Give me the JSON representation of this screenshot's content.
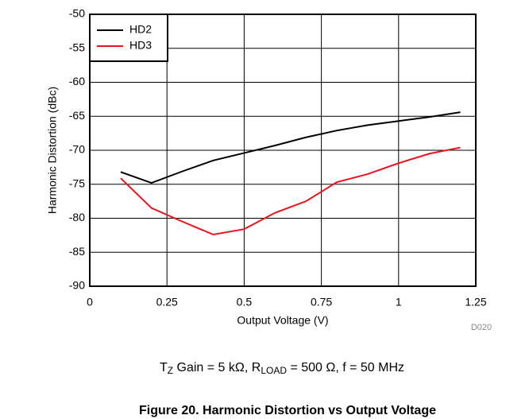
{
  "chart_data": {
    "type": "line",
    "x_label": "Output Voltage (V)",
    "y_label": "Harmonic Distortion (dBc)",
    "x": [
      0.1,
      0.2,
      0.3,
      0.4,
      0.5,
      0.6,
      0.7,
      0.8,
      0.9,
      1.0,
      1.1,
      1.2
    ],
    "series": [
      {
        "name": "HD2",
        "color": "#000000",
        "values": [
          -73.2,
          -74.8,
          -73.1,
          -71.5,
          -70.4,
          -69.3,
          -68.1,
          -67.1,
          -66.3,
          -65.7,
          -65.1,
          -64.4
        ]
      },
      {
        "name": "HD3",
        "color": "#e8141c",
        "values": [
          -74.1,
          -78.5,
          -80.5,
          -82.4,
          -81.6,
          -79.2,
          -77.5,
          -74.7,
          -73.5,
          -71.9,
          -70.5,
          -69.6
        ]
      }
    ],
    "xlim": [
      0,
      1.25
    ],
    "xticks": [
      0,
      0.25,
      0.5,
      0.75,
      1,
      1.25
    ],
    "ylim": [
      -90,
      -50
    ],
    "yticks": [
      -90,
      -85,
      -80,
      -75,
      -70,
      -65,
      -60,
      -55,
      -50
    ],
    "grid": true,
    "legend": "upper-left",
    "code": "D020",
    "caption": [
      "T",
      "Z",
      " Gain = 5 kΩ, R",
      "LOAD",
      " = 500 Ω, f = 50 MHz"
    ],
    "title": "Figure 20. Harmonic Distortion vs Output Voltage"
  }
}
